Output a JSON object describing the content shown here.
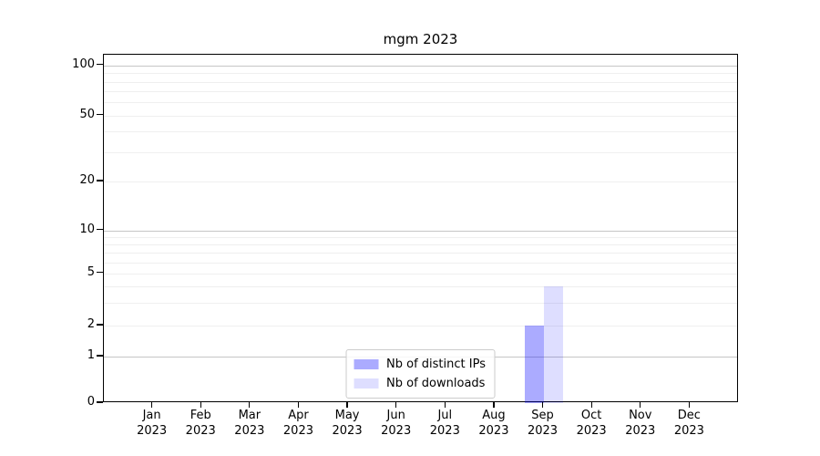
{
  "title": "mgm 2023",
  "colors": {
    "bar_distinct_ips": "rgba(0,0,255,0.33)",
    "bar_downloads": "rgba(0,0,255,0.13)",
    "grid_major": "#c6c6c6",
    "grid_minor": "#efefef",
    "axis": "#000000",
    "legend_border": "#cccccc"
  },
  "legend": {
    "items": [
      {
        "label": "Nb of distinct IPs",
        "color": "rgba(0,0,255,0.33)"
      },
      {
        "label": "Nb of downloads",
        "color": "rgba(0,0,255,0.13)"
      }
    ]
  },
  "chart_data": {
    "type": "bar",
    "title": "mgm 2023",
    "categories": [
      "Jan 2023",
      "Feb 2023",
      "Mar 2023",
      "Apr 2023",
      "May 2023",
      "Jun 2023",
      "Jul 2023",
      "Aug 2023",
      "Sep 2023",
      "Oct 2023",
      "Nov 2023",
      "Dec 2023"
    ],
    "series": [
      {
        "name": "Nb of distinct IPs",
        "color": "rgba(0,0,255,0.33)",
        "values": [
          0,
          0,
          0,
          0,
          0,
          0,
          0,
          0,
          2,
          0,
          0,
          0
        ]
      },
      {
        "name": "Nb of downloads",
        "color": "rgba(0,0,255,0.13)",
        "values": [
          0,
          0,
          0,
          0,
          0,
          0,
          0,
          0,
          4,
          0,
          0,
          0
        ]
      }
    ],
    "xlabel": "",
    "ylabel": "",
    "yscale": "symlog",
    "ylim": [
      0,
      116
    ],
    "y_ticks": [
      0,
      1,
      2,
      5,
      10,
      20,
      50,
      100
    ],
    "y_gridlines_major": [
      1,
      10,
      100
    ],
    "y_gridlines_minor": [
      2,
      3,
      4,
      5,
      6,
      7,
      8,
      9,
      20,
      30,
      40,
      50,
      60,
      70,
      80,
      90
    ],
    "grid": "horizontal",
    "legend_position": "lower center"
  }
}
